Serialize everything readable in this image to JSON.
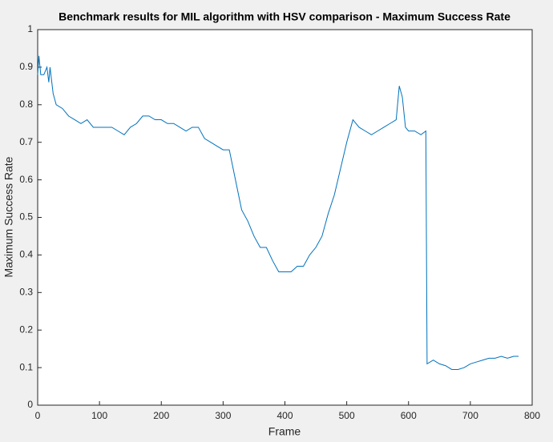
{
  "chart_data": {
    "type": "line",
    "title": "Benchmark results for MIL algorithm with HSV comparison - Maximum Success Rate",
    "x_label": "Frame",
    "y_label": "Maximum Success Rate",
    "x": [
      0,
      2,
      5,
      10,
      15,
      18,
      20,
      25,
      30,
      40,
      50,
      60,
      70,
      80,
      90,
      100,
      110,
      120,
      130,
      140,
      150,
      160,
      170,
      180,
      190,
      200,
      210,
      220,
      230,
      240,
      250,
      260,
      270,
      280,
      290,
      300,
      310,
      315,
      320,
      325,
      330,
      340,
      350,
      360,
      370,
      380,
      390,
      400,
      410,
      420,
      430,
      440,
      450,
      460,
      470,
      480,
      490,
      500,
      510,
      520,
      530,
      540,
      550,
      560,
      570,
      580,
      585,
      590,
      595,
      600,
      610,
      620,
      628,
      630,
      640,
      650,
      660,
      670,
      680,
      690,
      700,
      710,
      720,
      730,
      740,
      750,
      760,
      770,
      778
    ],
    "series": [
      {
        "name": "Maximum Success Rate",
        "color": "#0072bd",
        "values": [
          0.88,
          0.93,
          0.88,
          0.88,
          0.9,
          0.86,
          0.9,
          0.83,
          0.8,
          0.79,
          0.77,
          0.76,
          0.75,
          0.76,
          0.74,
          0.74,
          0.74,
          0.74,
          0.73,
          0.72,
          0.74,
          0.75,
          0.77,
          0.77,
          0.76,
          0.76,
          0.75,
          0.75,
          0.74,
          0.73,
          0.74,
          0.74,
          0.71,
          0.7,
          0.69,
          0.68,
          0.68,
          0.64,
          0.6,
          0.56,
          0.52,
          0.49,
          0.45,
          0.42,
          0.42,
          0.385,
          0.355,
          0.355,
          0.355,
          0.37,
          0.37,
          0.4,
          0.42,
          0.45,
          0.51,
          0.56,
          0.63,
          0.7,
          0.76,
          0.74,
          0.73,
          0.72,
          0.73,
          0.74,
          0.75,
          0.76,
          0.85,
          0.82,
          0.74,
          0.73,
          0.73,
          0.72,
          0.73,
          0.11,
          0.12,
          0.11,
          0.105,
          0.095,
          0.095,
          0.1,
          0.11,
          0.115,
          0.12,
          0.125,
          0.125,
          0.13,
          0.125,
          0.13,
          0.13
        ]
      }
    ],
    "xlim": [
      0,
      800
    ],
    "xticks": [
      0,
      100,
      200,
      300,
      400,
      500,
      600,
      700,
      800
    ],
    "ylim": [
      0,
      1
    ],
    "yticks": [
      0,
      0.1,
      0.2,
      0.3,
      0.4,
      0.5,
      0.6,
      0.7,
      0.8,
      0.9,
      1
    ]
  }
}
